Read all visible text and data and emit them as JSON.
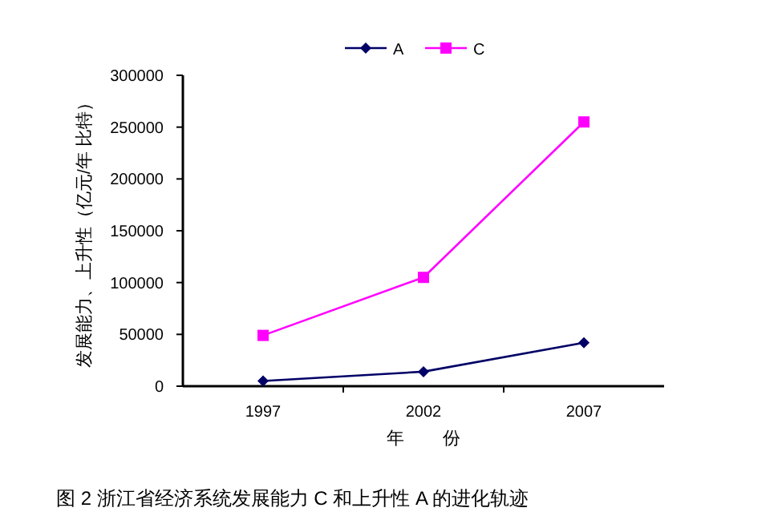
{
  "chart_data": {
    "type": "line",
    "categories": [
      "1997",
      "2002",
      "2007"
    ],
    "series": [
      {
        "name": "A",
        "color": "#000066",
        "marker": "diamond",
        "values": [
          5000,
          14000,
          42000
        ]
      },
      {
        "name": "C",
        "color": "#ff00ff",
        "marker": "square",
        "values": [
          49000,
          105000,
          255000
        ]
      }
    ],
    "ylim": [
      0,
      300000
    ],
    "yticks": [
      0,
      50000,
      100000,
      150000,
      200000,
      250000,
      300000
    ],
    "xlabel": "年        份",
    "ylabel": "发展能力、上升性（亿元/年 比特）",
    "legend": "top",
    "grid": false,
    "annotations": [
      "图 2  浙江省经济系统发展能力 C 和上升性 A 的进化轨迹"
    ]
  }
}
